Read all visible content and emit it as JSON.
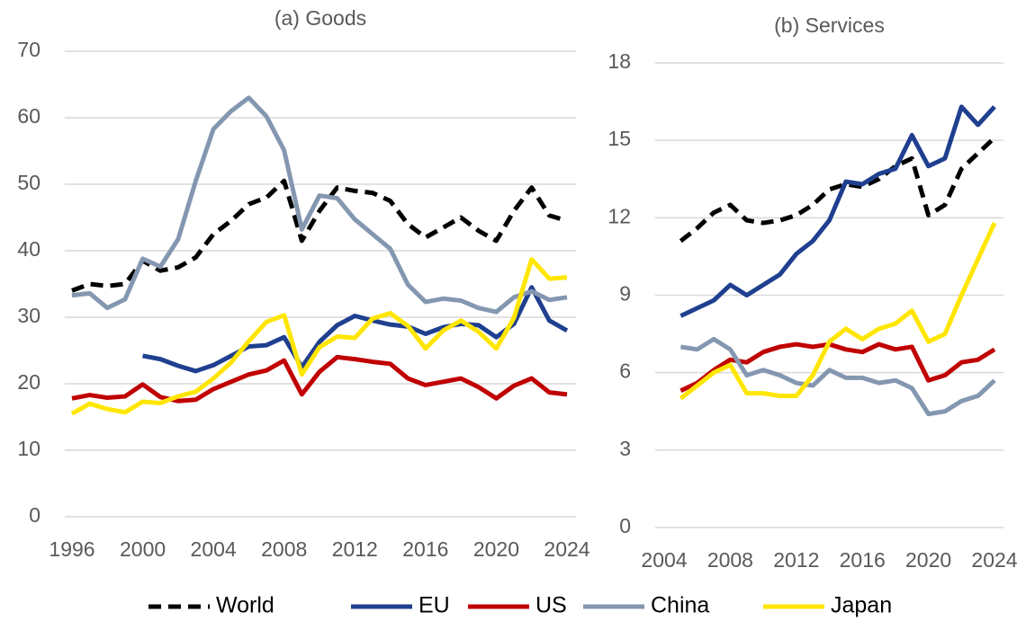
{
  "chart_data": [
    {
      "type": "line",
      "title": "(a) Goods",
      "x": [
        1996,
        1997,
        1998,
        1999,
        2000,
        2001,
        2002,
        2003,
        2004,
        2005,
        2006,
        2007,
        2008,
        2009,
        2010,
        2011,
        2012,
        2013,
        2014,
        2015,
        2016,
        2017,
        2018,
        2019,
        2020,
        2021,
        2022,
        2023,
        2024
      ],
      "xlim": [
        1996,
        2024
      ],
      "xticks": [
        1996,
        2000,
        2004,
        2008,
        2012,
        2016,
        2020,
        2024
      ],
      "ylim": [
        0,
        70
      ],
      "yticks": [
        0,
        10,
        20,
        30,
        40,
        50,
        60,
        70
      ],
      "grid": true,
      "series": [
        {
          "name": "World",
          "color": "#000000",
          "dash": true,
          "values": [
            34,
            35,
            34.7,
            35,
            38.5,
            37,
            37.5,
            39,
            42.5,
            44.5,
            47,
            48,
            50.5,
            41.5,
            46,
            49.5,
            49,
            48.7,
            47.5,
            44,
            42,
            43.5,
            45,
            43,
            41.5,
            46,
            49.5,
            45.3,
            44.5
          ]
        },
        {
          "name": "EU",
          "color": "#1f3f8f",
          "dash": false,
          "values": [
            null,
            null,
            null,
            null,
            24.2,
            23.7,
            22.7,
            21.9,
            22.8,
            24.2,
            25.6,
            25.8,
            27,
            22.5,
            26.3,
            28.8,
            30.2,
            29.5,
            28.9,
            28.6,
            27.5,
            28.5,
            29,
            28.8,
            27,
            29,
            34.5,
            29.5,
            28
          ]
        },
        {
          "name": "US",
          "color": "#c00000",
          "dash": false,
          "values": [
            17.8,
            18.3,
            17.9,
            18.1,
            19.9,
            18,
            17.4,
            17.6,
            19.2,
            20.3,
            21.4,
            22,
            23.5,
            18.4,
            21.8,
            24,
            23.7,
            23.3,
            23,
            20.8,
            19.8,
            20.3,
            20.8,
            19.5,
            17.8,
            19.7,
            20.8,
            18.7,
            18.4
          ]
        },
        {
          "name": "China",
          "color": "#8497b0",
          "dash": false,
          "values": [
            33.3,
            33.6,
            31.4,
            32.7,
            38.8,
            37.6,
            41.7,
            50.5,
            58.3,
            61,
            63,
            60.2,
            55.1,
            43.2,
            48.3,
            47.9,
            44.7,
            42.5,
            40.3,
            34.9,
            32.3,
            32.8,
            32.5,
            31.4,
            30.8,
            33,
            33.9,
            32.6,
            33
          ]
        },
        {
          "name": "Japan",
          "color": "#ffe600",
          "dash": false,
          "values": [
            15.5,
            17,
            16.2,
            15.7,
            17.3,
            17.1,
            18.1,
            18.8,
            20.8,
            23.2,
            26.4,
            29.3,
            30.3,
            21.4,
            25.5,
            27.1,
            26.9,
            29.8,
            30.6,
            28.7,
            25.3,
            28,
            29.5,
            27.8,
            25.3,
            29.9,
            38.7,
            35.8,
            36
          ]
        }
      ]
    },
    {
      "type": "line",
      "title": "(b) Services",
      "x": [
        2005,
        2006,
        2007,
        2008,
        2009,
        2010,
        2011,
        2012,
        2013,
        2014,
        2015,
        2016,
        2017,
        2018,
        2019,
        2020,
        2021,
        2022,
        2023,
        2024
      ],
      "xlim": [
        2004,
        2024
      ],
      "xticks": [
        2004,
        2008,
        2012,
        2016,
        2020,
        2024
      ],
      "ylim": [
        0,
        18
      ],
      "yticks": [
        0,
        3,
        6,
        9,
        12,
        15,
        18
      ],
      "grid": true,
      "series": [
        {
          "color": "#000000",
          "dash": true,
          "values": [
            11.1,
            11.6,
            12.2,
            12.5,
            11.9,
            11.8,
            11.9,
            12.1,
            12.5,
            13.1,
            13.3,
            13.2,
            13.5,
            14,
            14.3,
            12.1,
            12.5,
            13.9,
            14.5,
            15.1
          ]
        },
        {
          "color": "#1f3f8f",
          "dash": false,
          "values": [
            8.2,
            8.5,
            8.8,
            9.4,
            9.0,
            9.4,
            9.8,
            10.6,
            11.1,
            11.9,
            13.4,
            13.3,
            13.7,
            13.9,
            15.2,
            14.0,
            14.3,
            16.3,
            15.6,
            16.3
          ]
        },
        {
          "color": "#c00000",
          "dash": false,
          "values": [
            5.3,
            5.6,
            6.1,
            6.5,
            6.4,
            6.8,
            7.0,
            7.1,
            7.0,
            7.1,
            6.9,
            6.8,
            7.1,
            6.9,
            7.0,
            5.7,
            5.9,
            6.4,
            6.5,
            6.9
          ]
        },
        {
          "color": "#8497b0",
          "dash": false,
          "values": [
            7.0,
            6.9,
            7.3,
            6.9,
            5.9,
            6.1,
            5.9,
            5.6,
            5.5,
            6.1,
            5.8,
            5.8,
            5.6,
            5.7,
            5.4,
            4.4,
            4.5,
            4.9,
            5.1,
            5.7
          ]
        },
        {
          "color": "#ffe600",
          "dash": false,
          "values": [
            5.0,
            5.5,
            6.0,
            6.3,
            5.2,
            5.2,
            5.1,
            5.1,
            5.9,
            7.2,
            7.7,
            7.3,
            7.7,
            7.9,
            8.4,
            7.2,
            7.5,
            9.0,
            10.4,
            11.8
          ]
        }
      ]
    }
  ]
}
